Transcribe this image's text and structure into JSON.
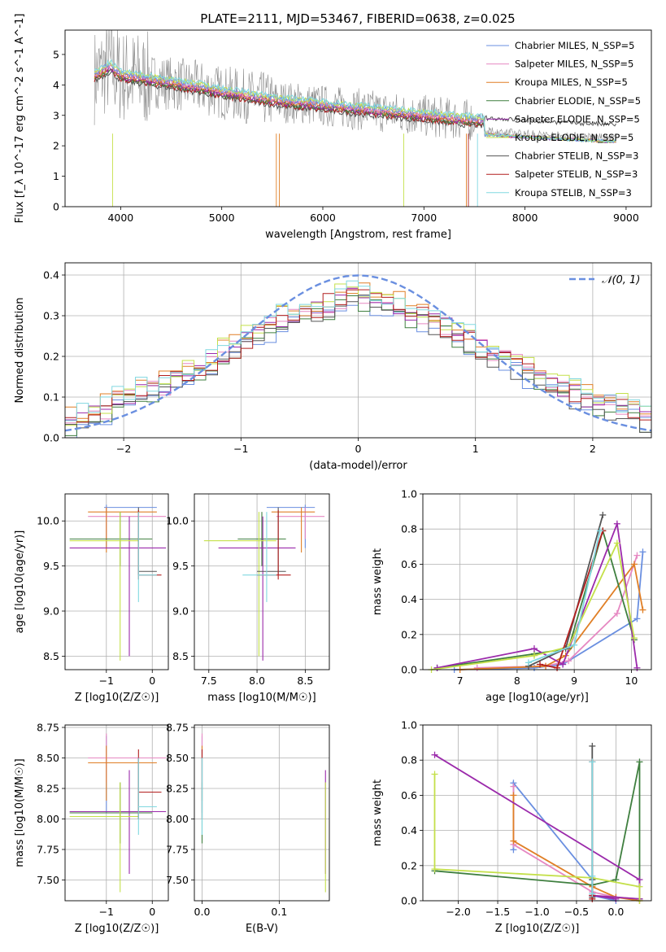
{
  "colors": {
    "c1": "#6a8fe0",
    "c2": "#e688c2",
    "c3": "#e07f26",
    "c4": "#3f7f3f",
    "c5": "#9b2aab",
    "c6": "#c4e04a",
    "c7": "#555555",
    "c8": "#b21f1f",
    "c9": "#80d8e0"
  },
  "chart_data": [
    {
      "type": "line",
      "title": "PLATE=2111, MJD=53467, FIBERID=0638, z=0.025",
      "xlabel": "wavelength [Angstrom, rest frame]",
      "ylabel": "Flux [f_λ 10^-17 erg cm^-2 s^-1 A^-1]",
      "xlim": [
        3450,
        9250
      ],
      "ylim": [
        0,
        5.8
      ],
      "xticks": [
        "4000",
        "5000",
        "6000",
        "7000",
        "8000",
        "9000"
      ],
      "yticks": [
        "0",
        "1",
        "2",
        "3",
        "4",
        "5"
      ],
      "series": [
        {
          "name": "Chabrier MILES, N_SSP=5",
          "color": "c1"
        },
        {
          "name": "Salpeter MILES, N_SSP=5",
          "color": "c2"
        },
        {
          "name": "Kroupa MILES, N_SSP=5",
          "color": "c3"
        },
        {
          "name": "Chabrier ELODIE, N_SSP=5",
          "color": "c4"
        },
        {
          "name": "Salpeter ELODIE, N_SSP=5",
          "color": "c5"
        },
        {
          "name": "Kroupa ELODIE, N_SSP=5",
          "color": "c6"
        },
        {
          "name": "Chabrier STELIB, N_SSP=3",
          "color": "c7"
        },
        {
          "name": "Salpeter STELIB, N_SSP=3",
          "color": "c8"
        },
        {
          "name": "Kroupa STELIB, N_SSP=3",
          "color": "c9"
        }
      ],
      "model_envelope": {
        "x": [
          3750,
          3900,
          4000,
          4200,
          4500,
          4800,
          5000,
          5300,
          5600,
          5900,
          6200,
          6500,
          6800,
          7100,
          7400,
          7700,
          7950,
          8200,
          8500,
          8800
        ],
        "y": [
          4.3,
          4.6,
          4.3,
          4.2,
          4.05,
          3.9,
          3.75,
          3.6,
          3.45,
          3.35,
          3.25,
          3.15,
          3.05,
          2.95,
          2.85,
          2.8,
          2.75,
          2.7,
          2.65,
          2.6
        ]
      }
    },
    {
      "type": "area",
      "xlabel": "(data-model)/error",
      "ylabel": "Normed distribution",
      "xlim": [
        -2.5,
        2.5
      ],
      "ylim": [
        0,
        0.43
      ],
      "xticks": [
        "−2",
        "−1",
        "0",
        "1",
        "2"
      ],
      "yticks": [
        "0.0",
        "0.1",
        "0.2",
        "0.3",
        "0.4"
      ],
      "legend": "𝒩(0, 1)",
      "bin_width": 0.1,
      "hist_base": [
        0.04,
        0.05,
        0.06,
        0.07,
        0.09,
        0.1,
        0.11,
        0.12,
        0.13,
        0.15,
        0.16,
        0.17,
        0.19,
        0.21,
        0.22,
        0.24,
        0.25,
        0.27,
        0.29,
        0.3,
        0.31,
        0.32,
        0.33,
        0.34,
        0.35,
        0.35,
        0.34,
        0.33,
        0.32,
        0.31,
        0.3,
        0.29,
        0.27,
        0.25,
        0.24,
        0.22,
        0.21,
        0.19,
        0.18,
        0.16,
        0.15,
        0.13,
        0.12,
        0.11,
        0.1,
        0.09,
        0.08,
        0.07,
        0.06,
        0.05
      ]
    },
    {
      "type": "scatter",
      "xlabel": "Z [log10(Z/Z☉)]",
      "ylabel": "age  [log10(age/yr)]",
      "xlim": [
        -1.9,
        0.35
      ],
      "ylim": [
        8.35,
        10.3
      ],
      "xticks": [
        "−1",
        "0"
      ],
      "yticks": [
        "8.5",
        "9.0",
        "9.5",
        "10.0"
      ],
      "points": [
        {
          "c": "c1",
          "x": -1.0,
          "y": 10.15,
          "xe": [
            -1.05,
            0.1
          ],
          "ye": [
            9.7,
            10.18
          ]
        },
        {
          "c": "c2",
          "x": -1.0,
          "y": 10.05,
          "xe": [
            -1.4,
            0.3
          ],
          "ye": [
            9.8,
            10.15
          ]
        },
        {
          "c": "c3",
          "x": -1.0,
          "y": 10.1,
          "xe": [
            -1.4,
            0.1
          ],
          "ye": [
            9.65,
            10.15
          ]
        },
        {
          "c": "c4",
          "x": -0.7,
          "y": 9.8,
          "xe": [
            -1.8,
            0.0
          ],
          "ye": [
            9.5,
            10.1
          ]
        },
        {
          "c": "c5",
          "x": -0.5,
          "y": 9.7,
          "xe": [
            -1.8,
            0.3
          ],
          "ye": [
            8.5,
            10.05
          ]
        },
        {
          "c": "c6",
          "x": -0.7,
          "y": 9.78,
          "xe": [
            -1.8,
            -0.3
          ],
          "ye": [
            8.45,
            10.1
          ]
        },
        {
          "c": "c7",
          "x": -0.3,
          "y": 9.44,
          "xe": [
            -0.3,
            0.1
          ],
          "ye": [
            9.4,
            10.15
          ]
        },
        {
          "c": "c8",
          "x": -0.3,
          "y": 9.4,
          "xe": [
            -0.3,
            0.2
          ],
          "ye": [
            9.35,
            10.12
          ]
        },
        {
          "c": "c9",
          "x": -0.3,
          "y": 9.4,
          "xe": [
            -0.3,
            0.1
          ],
          "ye": [
            9.1,
            10.1
          ]
        }
      ]
    },
    {
      "type": "scatter",
      "xlabel": "mass [log10(M/M☉)]",
      "ylabel": "",
      "xlim": [
        7.35,
        8.75
      ],
      "ylim": [
        8.35,
        10.3
      ],
      "xticks": [
        "7.5",
        "8.0",
        "8.5"
      ],
      "yticks": [
        "8.5",
        "9.0",
        "9.5",
        "10.0"
      ],
      "points": [
        {
          "c": "c1",
          "x": 8.5,
          "y": 10.15,
          "xe": [
            8.1,
            8.6
          ],
          "ye": [
            9.7,
            10.18
          ]
        },
        {
          "c": "c2",
          "x": 8.5,
          "y": 10.05,
          "xe": [
            8.2,
            8.7
          ],
          "ye": [
            9.8,
            10.15
          ]
        },
        {
          "c": "c3",
          "x": 8.46,
          "y": 10.1,
          "xe": [
            8.15,
            8.6
          ],
          "ye": [
            9.65,
            10.15
          ]
        },
        {
          "c": "c4",
          "x": 8.05,
          "y": 9.8,
          "xe": [
            7.8,
            8.3
          ],
          "ye": [
            9.5,
            10.1
          ]
        },
        {
          "c": "c5",
          "x": 8.06,
          "y": 9.7,
          "xe": [
            7.6,
            8.4
          ],
          "ye": [
            8.45,
            10.05
          ]
        },
        {
          "c": "c6",
          "x": 8.02,
          "y": 9.78,
          "xe": [
            7.45,
            8.2
          ],
          "ye": [
            8.5,
            10.1
          ]
        },
        {
          "c": "c7",
          "x": 8.22,
          "y": 9.44,
          "xe": [
            8.0,
            8.3
          ],
          "ye": [
            9.4,
            10.15
          ]
        },
        {
          "c": "c8",
          "x": 8.22,
          "y": 9.4,
          "xe": [
            8.0,
            8.35
          ],
          "ye": [
            9.35,
            10.12
          ]
        },
        {
          "c": "c9",
          "x": 8.1,
          "y": 9.4,
          "xe": [
            7.85,
            8.2
          ],
          "ye": [
            9.1,
            10.1
          ]
        }
      ]
    },
    {
      "type": "line",
      "xlabel": "age  [log10(age/yr)]",
      "ylabel": "mass weight",
      "xlim": [
        6.35,
        10.35
      ],
      "ylim": [
        0,
        1.0
      ],
      "xticks": [
        "7",
        "8",
        "9",
        "10"
      ],
      "yticks": [
        "0.0",
        "0.2",
        "0.4",
        "0.6",
        "0.8",
        "1.0"
      ],
      "series": [
        {
          "c": "c1",
          "x": [
            6.9,
            8.3,
            8.8,
            10.1,
            10.2
          ],
          "y": [
            0.0,
            0.01,
            0.03,
            0.29,
            0.67
          ]
        },
        {
          "c": "c2",
          "x": [
            7.3,
            8.5,
            8.9,
            9.75,
            10.1
          ],
          "y": [
            0.01,
            0.02,
            0.05,
            0.32,
            0.65
          ]
        },
        {
          "c": "c3",
          "x": [
            7.0,
            8.5,
            8.85,
            10.05,
            10.2
          ],
          "y": [
            0.0,
            0.02,
            0.08,
            0.6,
            0.34
          ]
        },
        {
          "c": "c4",
          "x": [
            6.6,
            8.3,
            8.9,
            9.5,
            10.05
          ],
          "y": [
            0.01,
            0.09,
            0.12,
            0.79,
            0.17
          ]
        },
        {
          "c": "c5",
          "x": [
            6.6,
            8.3,
            8.8,
            9.75,
            10.1
          ],
          "y": [
            0.01,
            0.12,
            0.03,
            0.83,
            0.01
          ]
        },
        {
          "c": "c6",
          "x": [
            6.5,
            8.3,
            8.9,
            9.75,
            10.05
          ],
          "y": [
            0.0,
            0.08,
            0.13,
            0.72,
            0.18
          ]
        },
        {
          "c": "c7",
          "x": [
            8.2,
            8.85,
            9.5
          ],
          "y": [
            0.02,
            0.12,
            0.88
          ]
        },
        {
          "c": "c8",
          "x": [
            8.4,
            8.7,
            9.5
          ],
          "y": [
            0.03,
            0.01,
            0.79
          ]
        },
        {
          "c": "c9",
          "x": [
            8.2,
            9.0,
            9.45
          ],
          "y": [
            0.04,
            0.14,
            0.79
          ]
        }
      ]
    },
    {
      "type": "scatter",
      "xlabel": "Z [log10(Z/Z☉)]",
      "ylabel": "mass [log10(M/M☉)]",
      "xlim": [
        -1.9,
        0.35
      ],
      "ylim": [
        7.33,
        8.77
      ],
      "xticks": [
        "−1",
        "0"
      ],
      "yticks": [
        "7.50",
        "7.75",
        "8.00",
        "8.25",
        "8.50",
        "8.75"
      ],
      "points": [
        {
          "c": "c1",
          "x": -1.0,
          "y": 8.5,
          "xe": [
            -1.05,
            0.1
          ],
          "ye": [
            8.05,
            8.68
          ]
        },
        {
          "c": "c2",
          "x": -1.0,
          "y": 8.5,
          "xe": [
            -1.4,
            0.3
          ],
          "ye": [
            8.3,
            8.7
          ]
        },
        {
          "c": "c3",
          "x": -1.0,
          "y": 8.46,
          "xe": [
            -1.4,
            0.1
          ],
          "ye": [
            8.15,
            8.6
          ]
        },
        {
          "c": "c4",
          "x": -0.7,
          "y": 8.05,
          "xe": [
            -1.8,
            0.0
          ],
          "ye": [
            7.8,
            8.3
          ]
        },
        {
          "c": "c5",
          "x": -0.5,
          "y": 8.06,
          "xe": [
            -1.8,
            0.3
          ],
          "ye": [
            7.55,
            8.4
          ]
        },
        {
          "c": "c6",
          "x": -0.7,
          "y": 8.02,
          "xe": [
            -1.8,
            -0.3
          ],
          "ye": [
            7.4,
            8.3
          ]
        },
        {
          "c": "c7",
          "x": -0.3,
          "y": 8.22,
          "xe": [
            -0.3,
            0.1
          ],
          "ye": [
            8.0,
            8.5
          ]
        },
        {
          "c": "c8",
          "x": -0.3,
          "y": 8.22,
          "xe": [
            -0.3,
            0.2
          ],
          "ye": [
            8.0,
            8.57
          ]
        },
        {
          "c": "c9",
          "x": -0.3,
          "y": 8.1,
          "xe": [
            -0.3,
            0.1
          ],
          "ye": [
            7.87,
            8.5
          ]
        }
      ]
    },
    {
      "type": "scatter",
      "xlabel": "E(B-V)",
      "ylabel": "",
      "xlim": [
        -0.01,
        0.165
      ],
      "ylim": [
        7.33,
        8.77
      ],
      "xticks": [
        "0.0",
        "0.1"
      ],
      "yticks": [
        "7.50",
        "7.75",
        "8.00",
        "8.25",
        "8.50",
        "8.75"
      ],
      "points": [
        {
          "c": "c1",
          "x": 0.0,
          "y": 8.5,
          "ye": [
            8.05,
            8.68
          ]
        },
        {
          "c": "c2",
          "x": 0.0,
          "y": 8.5,
          "ye": [
            8.3,
            8.7
          ]
        },
        {
          "c": "c3",
          "x": 0.0,
          "y": 8.46,
          "ye": [
            8.15,
            8.6
          ]
        },
        {
          "c": "c4",
          "x": 0.0,
          "y": 8.05,
          "ye": [
            7.8,
            8.3
          ]
        },
        {
          "c": "c5",
          "x": 0.16,
          "y": 8.06,
          "ye": [
            7.55,
            8.4
          ]
        },
        {
          "c": "c6",
          "x": 0.16,
          "y": 8.02,
          "ye": [
            7.4,
            8.3
          ]
        },
        {
          "c": "c7",
          "x": 0.0,
          "y": 8.22,
          "ye": [
            8.0,
            8.5
          ]
        },
        {
          "c": "c8",
          "x": 0.0,
          "y": 8.22,
          "ye": [
            8.0,
            8.57
          ]
        },
        {
          "c": "c9",
          "x": 0.0,
          "y": 8.1,
          "ye": [
            7.87,
            8.5
          ]
        }
      ]
    },
    {
      "type": "line",
      "xlabel": "Z [log10(Z/Z☉)]",
      "ylabel": "mass weight",
      "xlim": [
        -2.45,
        0.45
      ],
      "ylim": [
        0,
        1.0
      ],
      "xticks": [
        "−2.0",
        "−1.5",
        "−1.0",
        "−0.5",
        "0.0"
      ],
      "yticks": [
        "0.0",
        "0.2",
        "0.4",
        "0.6",
        "0.8",
        "1.0"
      ],
      "series": [
        {
          "c": "c1",
          "x": [
            -1.3,
            -1.3,
            -0.3,
            -0.3,
            0.0
          ],
          "y": [
            0.29,
            0.67,
            0.12,
            0.03,
            0.0
          ]
        },
        {
          "c": "c2",
          "x": [
            -1.3,
            -1.3,
            -0.3,
            0.0,
            0.3
          ],
          "y": [
            0.65,
            0.32,
            0.05,
            0.02,
            0.01
          ]
        },
        {
          "c": "c3",
          "x": [
            -1.3,
            -1.3,
            -0.3,
            0.0,
            0.3
          ],
          "y": [
            0.6,
            0.34,
            0.08,
            0.02,
            0.0
          ]
        },
        {
          "c": "c4",
          "x": [
            -2.3,
            -0.3,
            0.0,
            0.3,
            0.3
          ],
          "y": [
            0.17,
            0.09,
            0.12,
            0.79,
            0.01
          ]
        },
        {
          "c": "c5",
          "x": [
            -2.3,
            0.3,
            0.3,
            -0.3,
            0.0
          ],
          "y": [
            0.83,
            0.12,
            0.01,
            0.03,
            0.01
          ]
        },
        {
          "c": "c6",
          "x": [
            -2.3,
            -2.3,
            -0.3,
            0.3,
            0.3
          ],
          "y": [
            0.72,
            0.18,
            0.13,
            0.08,
            0.0
          ]
        },
        {
          "c": "c7",
          "x": [
            -0.3,
            -0.3,
            -0.3
          ],
          "y": [
            0.88,
            0.12,
            0.02
          ]
        },
        {
          "c": "c8",
          "x": [
            -0.3,
            -0.3,
            -0.3
          ],
          "y": [
            0.79,
            0.03,
            0.01
          ]
        },
        {
          "c": "c9",
          "x": [
            -0.3,
            -0.3,
            -0.3
          ],
          "y": [
            0.79,
            0.14,
            0.04
          ]
        }
      ]
    }
  ]
}
